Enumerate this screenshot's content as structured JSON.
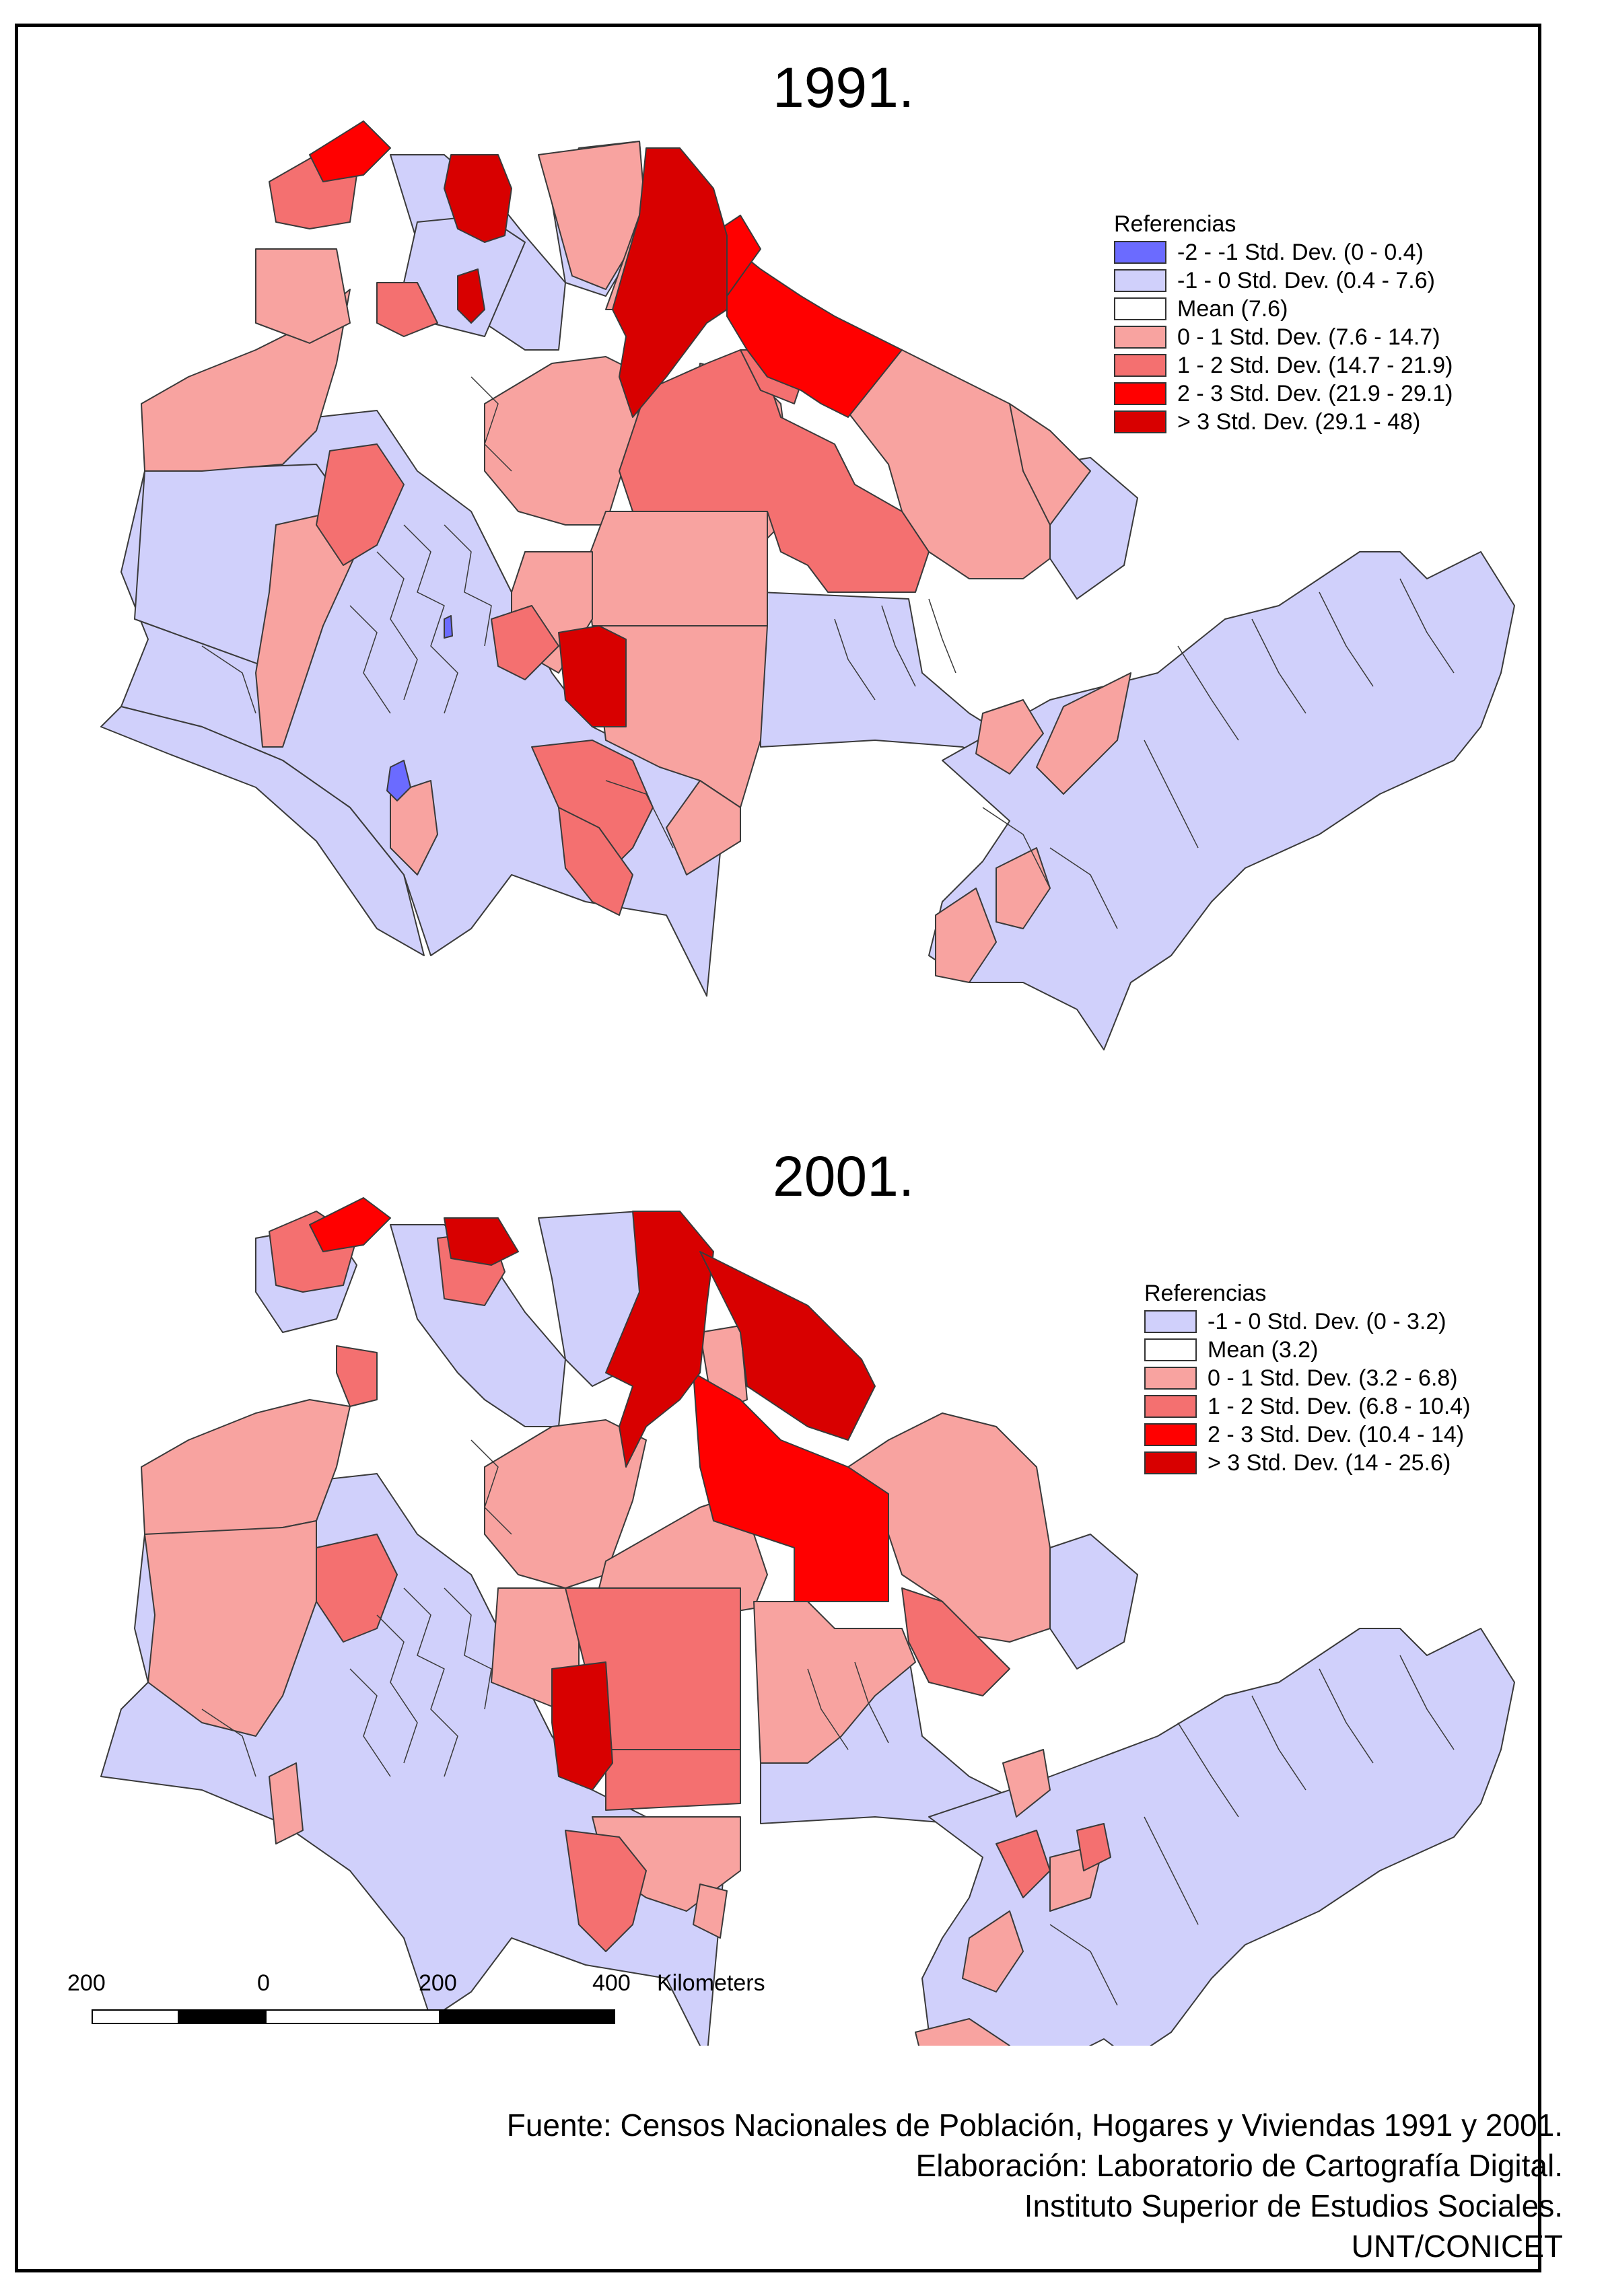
{
  "maps": [
    {
      "title": "1991.",
      "legend": {
        "title": "Referencias",
        "items": [
          {
            "label": "-2 - -1 Std. Dev. (0 - 0.4)",
            "color": "#6b6bff"
          },
          {
            "label": "-1 - 0 Std. Dev. (0.4 - 7.6)",
            "color": "#d0d0fb"
          },
          {
            "label": "Mean (7.6)",
            "color": "#ffffff"
          },
          {
            "label": "0 - 1 Std. Dev. (7.6 - 14.7)",
            "color": "#f8a3a0"
          },
          {
            "label": "1 - 2 Std. Dev. (14.7 - 21.9)",
            "color": "#f47070"
          },
          {
            "label": "2 - 3 Std. Dev. (21.9 - 29.1)",
            "color": "#ff0000"
          },
          {
            "label": "> 3 Std. Dev. (29.1 - 48)",
            "color": "#d80000"
          }
        ]
      }
    },
    {
      "title": "2001.",
      "legend": {
        "title": "Referencias",
        "items": [
          {
            "label": "-1 - 0 Std. Dev. (0 - 3.2)",
            "color": "#d0d0fb"
          },
          {
            "label": "Mean (3.2)",
            "color": "#ffffff"
          },
          {
            "label": "0 - 1 Std. Dev. (3.2 - 6.8)",
            "color": "#f8a3a0"
          },
          {
            "label": "1 - 2 Std. Dev. (6.8 - 10.4)",
            "color": "#f47070"
          },
          {
            "label": "2 - 3 Std. Dev. (10.4 - 14)",
            "color": "#ff0000"
          },
          {
            "label": "> 3 Std. Dev. (14 - 25.6)",
            "color": "#d80000"
          }
        ]
      }
    }
  ],
  "scale_bar": {
    "labels": [
      "200",
      "0",
      "200",
      "400"
    ],
    "unit": "Kilometers"
  },
  "credits": [
    "Fuente: Censos Nacionales de Población, Hogares y Viviendas 1991 y 2001.",
    "Elaboración: Laboratorio de Cartografía Digital.",
    "Instituto Superior de Estudios Sociales.",
    "UNT/CONICET"
  ]
}
